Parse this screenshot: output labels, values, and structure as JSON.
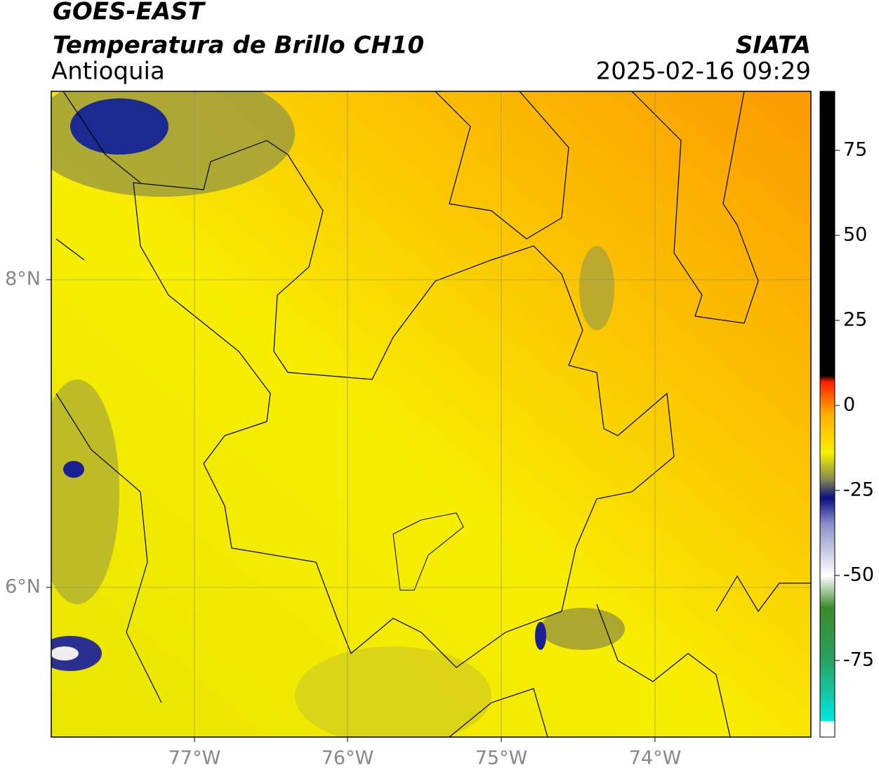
{
  "header": {
    "title": "GOES-EAST",
    "subtitle": "Temperatura de Brillo CH10",
    "region": "Antioquia",
    "source": "SIATA",
    "timestamp": "2025-02-16 09:29"
  },
  "map": {
    "lon_labels": [
      "77°W",
      "76°W",
      "75°W",
      "74°W"
    ],
    "lat_labels": [
      "8°N",
      "6°N"
    ]
  },
  "colorbar": {
    "ticks": [
      75,
      50,
      25,
      0,
      -25,
      -50,
      -75
    ]
  }
}
